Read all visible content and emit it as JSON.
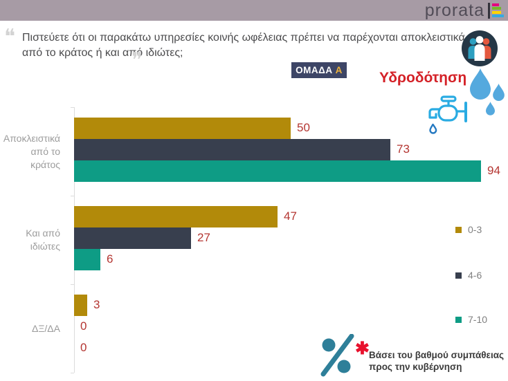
{
  "header": {
    "logo_text": "prorata",
    "band_color": "#a79ba5"
  },
  "question": {
    "open_quote": "❝",
    "close_quote": "❞",
    "text": "Πιστεύετε ότι οι παρακάτω υπηρεσίες κοινής ωφέλειας πρέπει να παρέχονται αποκλειστικά από το κράτος ή και από ιδιώτες;"
  },
  "badge": {
    "label": "ΟΜΑΔΑ",
    "group": "Α"
  },
  "topic": {
    "title": "Υδροδότηση",
    "color": "#d42127"
  },
  "chart_data": {
    "type": "bar",
    "orientation": "horizontal",
    "categories": [
      "Αποκλειστικά από το κράτος",
      "Και από ιδιώτες",
      "ΔΞ/ΔΑ"
    ],
    "series": [
      {
        "name": "0-3",
        "color": "#b28a0a",
        "values": [
          50,
          47,
          3
        ]
      },
      {
        "name": "4-6",
        "color": "#383f4e",
        "values": [
          73,
          27,
          0
        ]
      },
      {
        "name": "7-10",
        "color": "#0e9c85",
        "values": [
          94,
          6,
          0
        ]
      }
    ],
    "xlim": [
      0,
      100
    ],
    "grid": false,
    "legend_position": "right",
    "value_label_color": "#b43531",
    "title": "Υδροδότηση"
  },
  "footnote": {
    "marker": "✱",
    "lines": [
      "Βάσει του βαθμού συμπάθειας",
      "προς την κυβέρνηση"
    ]
  }
}
